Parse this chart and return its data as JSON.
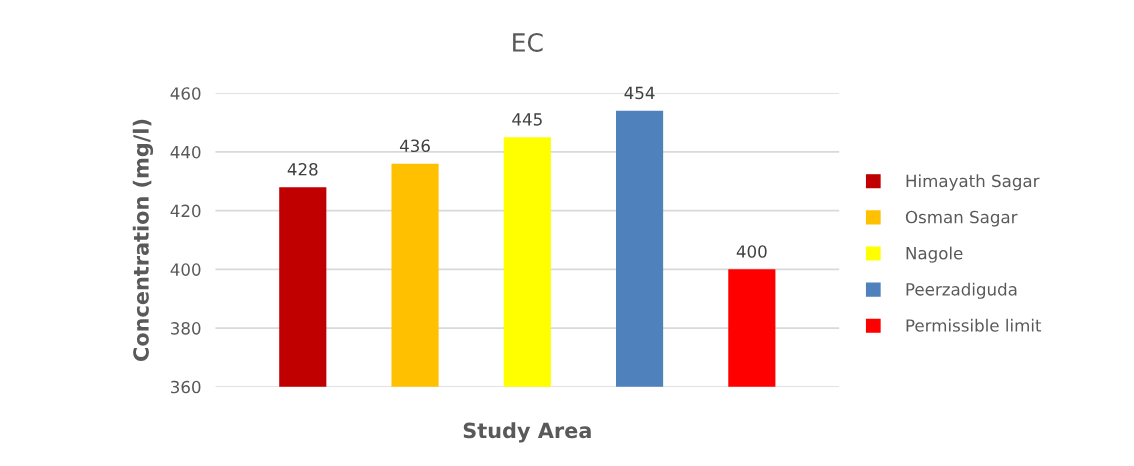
{
  "chart_data": {
    "type": "bar",
    "title": "EC",
    "xlabel": "Study Area",
    "ylabel": "Concentration (mg/l)",
    "categories": [
      null
    ],
    "series": [
      {
        "name": "Himayath Sagar",
        "color": "#c00000",
        "values": [
          428
        ]
      },
      {
        "name": "Osman Sagar",
        "color": "#ffc000",
        "values": [
          436
        ]
      },
      {
        "name": "Nagole",
        "color": "#ffff00",
        "values": [
          445
        ]
      },
      {
        "name": "Peerzadiguda",
        "color": "#4f81bd",
        "values": [
          454
        ]
      },
      {
        "name": "Permissible limit",
        "color": "#ff0000",
        "values": [
          400
        ]
      }
    ],
    "ylim": [
      360,
      460
    ],
    "yticks": [
      360,
      380,
      400,
      420,
      440,
      460
    ],
    "grid": "y",
    "legend": "right",
    "data_labels": true
  }
}
